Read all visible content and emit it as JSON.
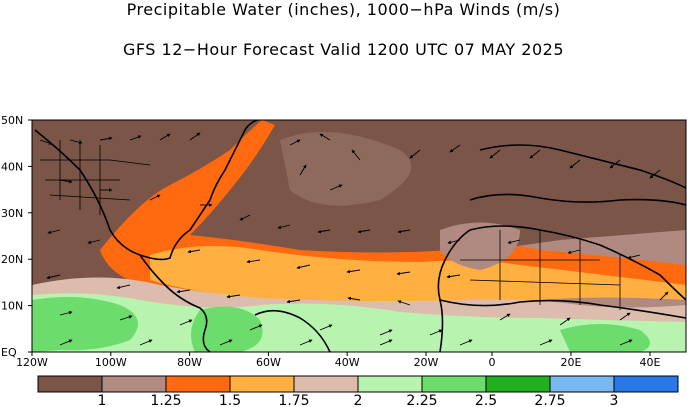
{
  "header": {
    "title": "Precipitable Water (inches), 1000−hPa Winds (m/s)",
    "subtitle": "GFS 12−Hour Forecast Valid 1200 UTC 07 MAY 2025"
  },
  "map": {
    "lat_labels": [
      "50N",
      "40N",
      "30N",
      "20N",
      "10N",
      "EQ"
    ],
    "lon_labels": [
      "120W",
      "100W",
      "80W",
      "60W",
      "40W",
      "20W",
      "0",
      "20E",
      "40E"
    ]
  },
  "legend": {
    "colors": [
      "#7a5548",
      "#b08a80",
      "#ff6a10",
      "#ffb040",
      "#dcbcac",
      "#b8f4b0",
      "#6cdc6c",
      "#20b020",
      "#78b8f0",
      "#2878e8"
    ],
    "labels": [
      "1",
      "1.25",
      "1.5",
      "1.75",
      "2",
      "2.25",
      "2.5",
      "2.75",
      "3"
    ]
  }
}
